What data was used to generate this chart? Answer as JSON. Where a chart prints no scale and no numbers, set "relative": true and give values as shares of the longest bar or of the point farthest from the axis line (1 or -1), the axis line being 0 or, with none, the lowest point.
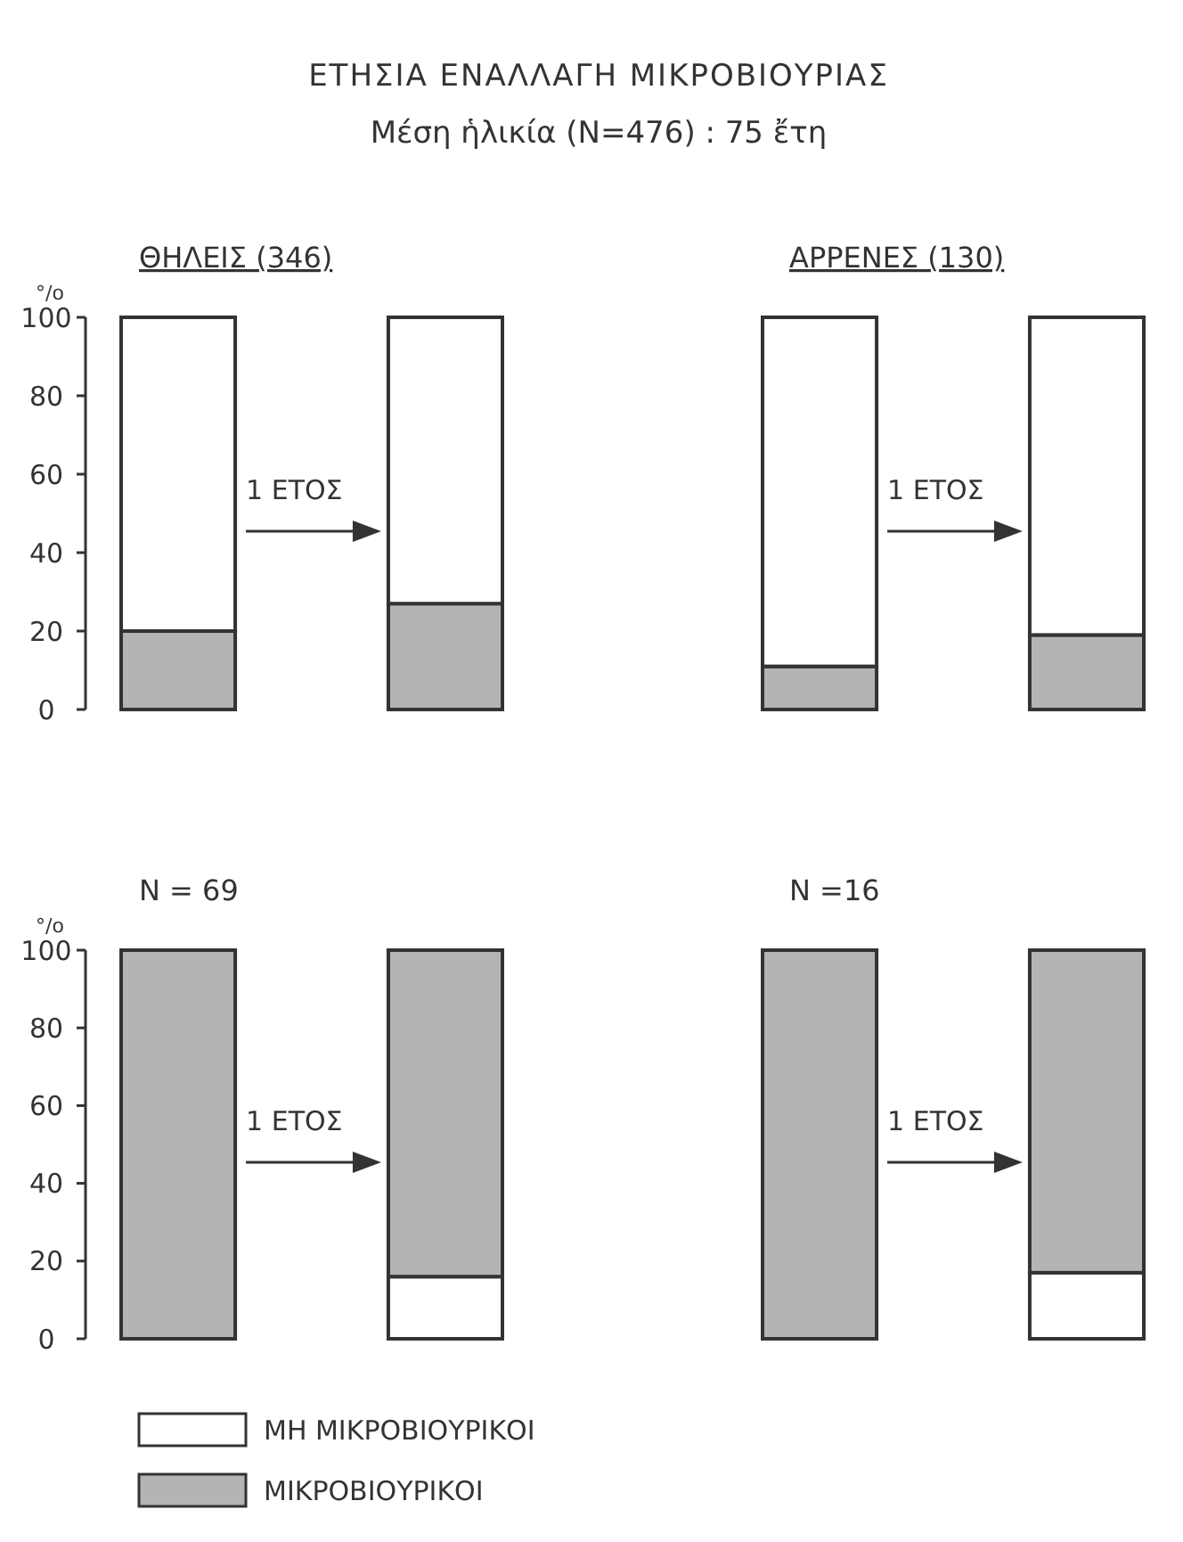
{
  "chart_data": [
    {
      "type": "bar",
      "stacked": true,
      "title": "ΕΤΗΣΙΑ ΕΝΑΛΛΑΓΗ ΜΙΚΡΟΒΙΟΥΡΙΑΣ",
      "subtitle": "Μέση ἡλικία (N=476) : 75 ἔτη",
      "xlabel": "ΘΗΛΕΙΣ (346)",
      "ylabel": "°/o",
      "categories": [
        null,
        null
      ],
      "ylim": [
        0,
        100
      ],
      "yticks": [
        0,
        20,
        40,
        60,
        80,
        100
      ],
      "annotations": [
        "1 ΕΤΟΣ"
      ],
      "series": [
        {
          "color": "#b4b4b4",
          "values": [
            20,
            27
          ]
        },
        {
          "color": "#ffffff",
          "values": [
            80,
            73
          ]
        }
      ]
    },
    {
      "type": "bar",
      "stacked": true,
      "xlabel": "ΑΡΡΕΝΕΣ (130)",
      "categories": [
        null,
        null
      ],
      "relative": true,
      "annotations": [
        "1 ΕΤΟΣ"
      ],
      "series": [
        {
          "color": "#b4b4b4",
          "values": [
            0.11,
            0.19
          ]
        },
        {
          "color": "#ffffff",
          "values": [
            0.89,
            0.81
          ]
        }
      ]
    },
    {
      "type": "bar",
      "stacked": true,
      "xlabel": "N = 69",
      "ylabel": "°/o",
      "categories": [
        null,
        null
      ],
      "ylim": [
        0,
        100
      ],
      "yticks": [
        0,
        20,
        40,
        60,
        80,
        100
      ],
      "annotations": [
        "1 ΕΤΟΣ"
      ],
      "legend": "bottom",
      "series": [
        {
          "name": "ΜΗ ΜΙΚΡΟΒΙΟΥΡΙΚΟΙ",
          "color": "#ffffff",
          "values": [
            0,
            16
          ]
        },
        {
          "name": "ΜΙΚΡΟΒΙΟΥΡΙΚΟΙ",
          "color": "#b4b4b4",
          "values": [
            100,
            84
          ]
        }
      ]
    },
    {
      "type": "bar",
      "stacked": true,
      "xlabel": "N =16",
      "categories": [
        null,
        null
      ],
      "relative": true,
      "annotations": [
        "1 ΕΤΟΣ"
      ],
      "series": [
        {
          "color": "#ffffff",
          "values": [
            0,
            0.17
          ]
        },
        {
          "color": "#b4b4b4",
          "values": [
            1,
            0.83
          ]
        }
      ]
    }
  ]
}
